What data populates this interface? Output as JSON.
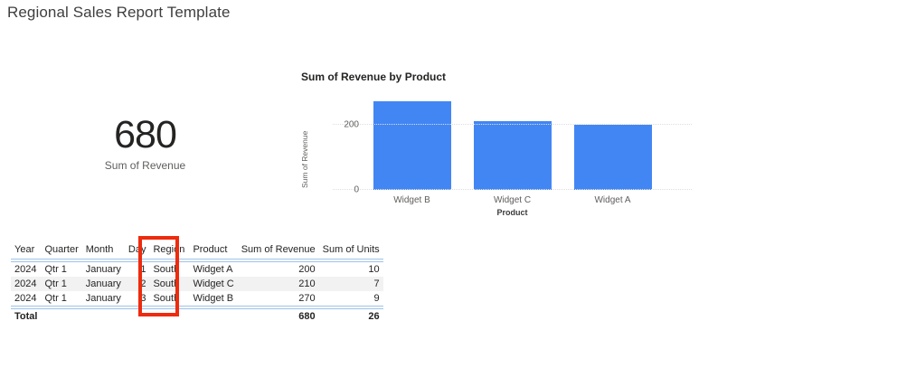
{
  "page": {
    "title": "Regional Sales Report Template"
  },
  "card": {
    "value": "680",
    "label": "Sum of Revenue"
  },
  "chart_data": {
    "type": "bar",
    "title": "Sum of Revenue by Product",
    "categories": [
      "Widget B",
      "Widget C",
      "Widget A"
    ],
    "values": [
      270,
      210,
      200
    ],
    "xlabel": "Product",
    "ylabel": "Sum of Revenue",
    "ylim": [
      0,
      290
    ],
    "yticks": [
      0,
      200
    ],
    "bar_color": "#4286F4",
    "grid": "horizontal-dotted",
    "legend_position": "none"
  },
  "table": {
    "columns": [
      "Year",
      "Quarter",
      "Month",
      "Day",
      "Region",
      "Product",
      "Sum of Revenue",
      "Sum of Units"
    ],
    "rows": [
      [
        "2024",
        "Qtr 1",
        "January",
        "1",
        "South",
        "Widget A",
        "200",
        "10"
      ],
      [
        "2024",
        "Qtr 1",
        "January",
        "2",
        "South",
        "Widget C",
        "210",
        "7"
      ],
      [
        "2024",
        "Qtr 1",
        "January",
        "3",
        "South",
        "Widget B",
        "270",
        "9"
      ]
    ],
    "total": {
      "label": "Total",
      "revenue": "680",
      "units": "26"
    }
  },
  "annotation": {
    "type": "rectangle-highlight",
    "highlighted_column": "Region",
    "color": "#EE2B0E"
  }
}
